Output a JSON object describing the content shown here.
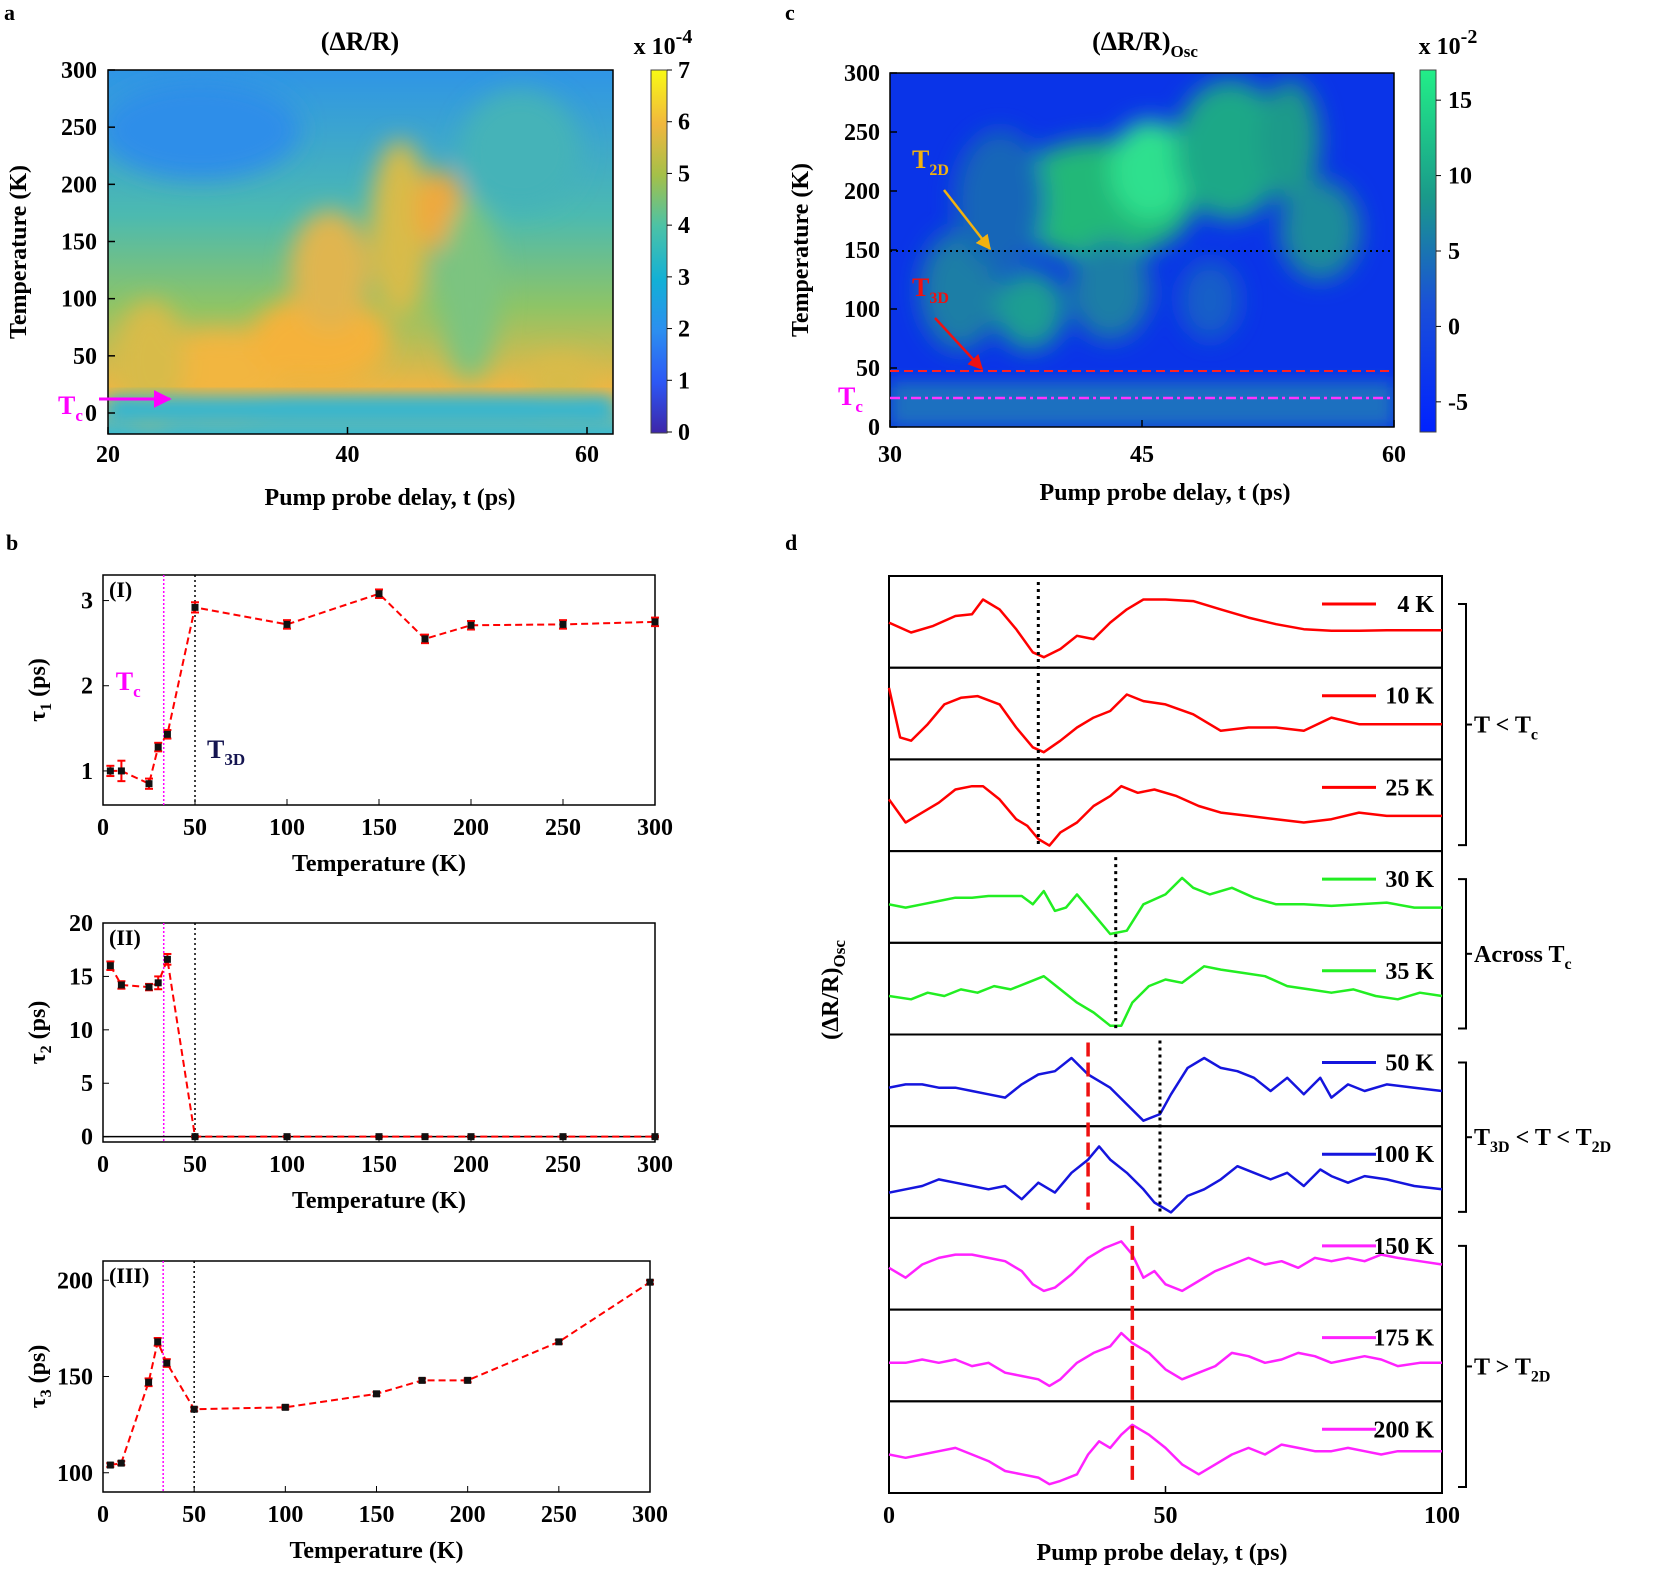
{
  "panels": {
    "a": {
      "letter": "a",
      "title": "(ΔR/R)",
      "xlabel": "Pump probe delay, t (ps)",
      "ylabel": "Temperature (K)",
      "xticks": [
        "20",
        "40",
        "60"
      ],
      "yticks": [
        "0",
        "50",
        "100",
        "150",
        "200",
        "250",
        "300"
      ],
      "colorbar": {
        "multiplier": "x 10",
        "exponent": "-4",
        "ticks": [
          "0",
          "1",
          "2",
          "3",
          "4",
          "5",
          "6",
          "7"
        ]
      },
      "annotation": {
        "main": "T",
        "sub": "c"
      }
    },
    "b": {
      "letter": "b"
    },
    "c": {
      "letter": "c",
      "title_main": "(ΔR/R)",
      "title_sub": "Osc",
      "xlabel": "Pump probe delay, t (ps)",
      "ylabel": "Temperature (K)",
      "xticks": [
        "30",
        "45",
        "60"
      ],
      "yticks": [
        "0",
        "50",
        "100",
        "150",
        "200",
        "250",
        "300"
      ],
      "colorbar": {
        "multiplier": "x 10",
        "exponent": "-2",
        "ticks": [
          "15",
          "10",
          "5",
          "0",
          "-5"
        ]
      },
      "annotations": {
        "t2d": {
          "main": "T",
          "sub": "2D"
        },
        "t3d": {
          "main": "T",
          "sub": "3D"
        },
        "tc": {
          "main": "T",
          "sub": "c"
        }
      }
    },
    "d": {
      "letter": "d",
      "ylabel_main": "(ΔR/R)",
      "ylabel_sub": "Osc",
      "xlabel": "Pump probe delay, t (ps)",
      "xticks": [
        "0",
        "50",
        "100"
      ],
      "groups": [
        {
          "text": "T < T",
          "sub": "c",
          "tail": ""
        },
        {
          "text": "Across T",
          "sub": "c",
          "tail": ""
        },
        {
          "text": "T",
          "sub": "3D",
          "tail": " < T < T",
          "sub2": "2D"
        },
        {
          "text": "T > T",
          "sub": "2D",
          "tail": ""
        }
      ]
    }
  },
  "chart_data": [
    {
      "id": "b-I",
      "type": "line",
      "panel_label": "(I)",
      "ylabel_main": "τ",
      "ylabel_sub": "1",
      "ylabel_tail": " (ps)",
      "xlabel": "Temperature (K)",
      "xlim": [
        0,
        300
      ],
      "ylim": [
        0.6,
        3.3
      ],
      "xticks": [
        0,
        50,
        100,
        150,
        200,
        250,
        300
      ],
      "yticks": [
        1,
        2,
        3
      ],
      "x": [
        4,
        10,
        25,
        30,
        35,
        50,
        100,
        150,
        175,
        200,
        250,
        300
      ],
      "y": [
        1.0,
        1.0,
        0.85,
        1.28,
        1.43,
        2.92,
        2.72,
        3.08,
        2.55,
        2.71,
        2.72,
        2.75
      ],
      "err": [
        0.06,
        0.12,
        0.06,
        0.05,
        0.05,
        0.06,
        0.05,
        0.05,
        0.05,
        0.05,
        0.05,
        0.05
      ],
      "color": "#ff0000",
      "tc_line": 33,
      "t3d_line": 50,
      "tc_label": {
        "main": "T",
        "sub": "c"
      },
      "t3d_label": {
        "main": "T",
        "sub": "3D"
      }
    },
    {
      "id": "b-II",
      "type": "line",
      "panel_label": "(II)",
      "ylabel_main": "τ",
      "ylabel_sub": "2",
      "ylabel_tail": " (ps)",
      "xlabel": "Temperature (K)",
      "xlim": [
        0,
        300
      ],
      "ylim": [
        -0.5,
        20
      ],
      "xticks": [
        0,
        50,
        100,
        150,
        200,
        250,
        300
      ],
      "yticks": [
        0,
        5,
        10,
        15,
        20
      ],
      "x": [
        4,
        10,
        25,
        30,
        35,
        50,
        100,
        150,
        175,
        200,
        250,
        300
      ],
      "y": [
        16.0,
        14.2,
        14.0,
        14.4,
        16.6,
        0,
        0,
        0,
        0,
        0,
        0,
        0
      ],
      "err": [
        0.4,
        0.35,
        0.3,
        0.6,
        0.5,
        0.05,
        0.05,
        0.05,
        0.05,
        0.05,
        0.05,
        0.05
      ],
      "color": "#ff0000",
      "tc_line": 33,
      "t3d_line": 50
    },
    {
      "id": "b-III",
      "type": "line",
      "panel_label": "(III)",
      "ylabel_main": "τ",
      "ylabel_sub": "3",
      "ylabel_tail": " (ps)",
      "xlabel": "Temperature (K)",
      "xlim": [
        0,
        300
      ],
      "ylim": [
        90,
        210
      ],
      "xticks": [
        0,
        50,
        100,
        150,
        200,
        250,
        300
      ],
      "yticks": [
        100,
        150,
        200
      ],
      "x": [
        4,
        10,
        25,
        30,
        35,
        50,
        100,
        150,
        175,
        200,
        250,
        300
      ],
      "y": [
        104,
        105,
        147,
        168,
        157,
        133,
        134,
        141,
        148,
        148,
        168,
        199
      ],
      "err": [
        1,
        1,
        2,
        2,
        2,
        1,
        1,
        1,
        1,
        1,
        1,
        1
      ],
      "color": "#ff0000",
      "tc_line": 33,
      "t3d_line": 50
    },
    {
      "id": "d",
      "type": "line",
      "xlim": [
        0,
        100
      ],
      "series": [
        {
          "name": "4 K",
          "color": "#ff0000",
          "x": [
            0,
            4,
            8,
            12,
            15,
            17,
            20,
            23,
            26,
            28,
            31,
            34,
            37,
            40,
            43,
            46,
            50,
            55,
            60,
            65,
            70,
            75,
            80,
            85,
            90,
            95,
            100
          ],
          "y": [
            0.2,
            -0.1,
            0.1,
            0.4,
            0.45,
            0.9,
            0.6,
            0.0,
            -0.7,
            -0.85,
            -0.6,
            -0.2,
            -0.3,
            0.2,
            0.6,
            0.9,
            0.9,
            0.85,
            0.6,
            0.35,
            0.15,
            0.0,
            -0.05,
            -0.05,
            -0.03,
            -0.03,
            -0.03
          ]
        },
        {
          "name": "10 K",
          "color": "#ff0000",
          "x": [
            0,
            2,
            4,
            7,
            10,
            13,
            16,
            20,
            23,
            26,
            28,
            31,
            34,
            37,
            40,
            43,
            46,
            50,
            55,
            60,
            65,
            70,
            75,
            80,
            85,
            90,
            95,
            100
          ],
          "y": [
            1.0,
            -0.5,
            -0.6,
            -0.1,
            0.5,
            0.7,
            0.75,
            0.5,
            -0.2,
            -0.8,
            -0.95,
            -0.6,
            -0.2,
            0.1,
            0.3,
            0.8,
            0.6,
            0.5,
            0.2,
            -0.3,
            -0.2,
            -0.2,
            -0.3,
            0.1,
            -0.1,
            -0.1,
            -0.1,
            -0.1
          ]
        },
        {
          "name": "25 K",
          "color": "#ff0000",
          "x": [
            0,
            3,
            6,
            9,
            12,
            15,
            17,
            20,
            23,
            25,
            27,
            29,
            31,
            34,
            37,
            40,
            42,
            45,
            48,
            52,
            56,
            60,
            65,
            70,
            75,
            80,
            85,
            90,
            95,
            100
          ],
          "y": [
            0.4,
            -0.3,
            0.0,
            0.3,
            0.7,
            0.8,
            0.8,
            0.4,
            -0.2,
            -0.4,
            -0.8,
            -1.0,
            -0.6,
            -0.3,
            0.2,
            0.5,
            0.8,
            0.6,
            0.7,
            0.5,
            0.2,
            0.0,
            -0.1,
            -0.2,
            -0.3,
            -0.2,
            0.0,
            -0.1,
            -0.1,
            -0.1
          ]
        },
        {
          "name": "30 K",
          "color": "#22ee22",
          "x": [
            0,
            3,
            6,
            9,
            12,
            15,
            18,
            21,
            24,
            26,
            28,
            30,
            32,
            34,
            37,
            40,
            43,
            46,
            50,
            53,
            55,
            58,
            62,
            66,
            70,
            75,
            80,
            85,
            90,
            95,
            100
          ],
          "y": [
            0.0,
            -0.1,
            0.0,
            0.1,
            0.2,
            0.2,
            0.25,
            0.25,
            0.25,
            0.0,
            0.4,
            -0.2,
            -0.1,
            0.3,
            -0.3,
            -0.9,
            -0.8,
            0.0,
            0.3,
            0.8,
            0.5,
            0.3,
            0.5,
            0.2,
            0.0,
            0.0,
            -0.05,
            0.0,
            0.05,
            -0.1,
            -0.1
          ]
        },
        {
          "name": "35 K",
          "color": "#22ee22",
          "x": [
            0,
            4,
            7,
            10,
            13,
            16,
            19,
            22,
            25,
            28,
            31,
            34,
            37,
            40,
            42,
            44,
            47,
            50,
            53,
            57,
            60,
            64,
            68,
            72,
            76,
            80,
            84,
            88,
            92,
            96,
            100
          ],
          "y": [
            0.0,
            -0.1,
            0.1,
            0.0,
            0.2,
            0.1,
            0.3,
            0.2,
            0.4,
            0.6,
            0.2,
            -0.2,
            -0.5,
            -0.9,
            -0.9,
            -0.2,
            0.3,
            0.5,
            0.4,
            0.9,
            0.8,
            0.7,
            0.6,
            0.3,
            0.2,
            0.1,
            0.2,
            0.0,
            -0.1,
            0.1,
            0.0
          ]
        },
        {
          "name": "50 K",
          "color": "#1515dd",
          "x": [
            0,
            3,
            6,
            9,
            12,
            15,
            18,
            21,
            24,
            27,
            30,
            33,
            36,
            38,
            40,
            43,
            46,
            49,
            51,
            54,
            57,
            60,
            63,
            66,
            69,
            72,
            75,
            78,
            80,
            83,
            86,
            90,
            95,
            100
          ],
          "y": [
            0.0,
            0.1,
            0.1,
            0.0,
            0.0,
            -0.1,
            -0.2,
            -0.3,
            0.1,
            0.4,
            0.5,
            0.9,
            0.4,
            0.2,
            0.0,
            -0.5,
            -1.0,
            -0.8,
            -0.2,
            0.6,
            0.9,
            0.6,
            0.5,
            0.3,
            -0.1,
            0.3,
            -0.2,
            0.3,
            -0.3,
            0.1,
            -0.1,
            0.1,
            0.0,
            -0.1
          ]
        },
        {
          "name": "100 K",
          "color": "#1515dd",
          "x": [
            0,
            3,
            6,
            9,
            12,
            15,
            18,
            21,
            24,
            27,
            30,
            33,
            36,
            38,
            40,
            43,
            46,
            48,
            51,
            54,
            57,
            60,
            63,
            66,
            69,
            72,
            75,
            78,
            80,
            83,
            86,
            90,
            95,
            100
          ],
          "y": [
            -0.4,
            -0.3,
            -0.2,
            0.0,
            -0.1,
            -0.2,
            -0.3,
            -0.2,
            -0.6,
            -0.1,
            -0.4,
            0.2,
            0.6,
            1.0,
            0.6,
            0.2,
            -0.3,
            -0.7,
            -1.0,
            -0.5,
            -0.3,
            0.0,
            0.4,
            0.2,
            0.0,
            0.2,
            -0.2,
            0.3,
            0.1,
            -0.1,
            0.1,
            0.0,
            -0.2,
            -0.3
          ]
        },
        {
          "name": "150 K",
          "color": "#ff22ff",
          "x": [
            0,
            3,
            6,
            9,
            12,
            15,
            18,
            21,
            24,
            26,
            28,
            30,
            33,
            36,
            39,
            42,
            44,
            46,
            48,
            50,
            53,
            56,
            59,
            62,
            65,
            68,
            71,
            74,
            77,
            80,
            83,
            86,
            89,
            92,
            96,
            100
          ],
          "y": [
            0.1,
            -0.2,
            0.2,
            0.4,
            0.5,
            0.5,
            0.4,
            0.3,
            0.0,
            -0.4,
            -0.6,
            -0.5,
            -0.1,
            0.4,
            0.7,
            0.9,
            0.5,
            -0.2,
            0.0,
            -0.4,
            -0.6,
            -0.3,
            0.0,
            0.2,
            0.4,
            0.2,
            0.3,
            0.1,
            0.4,
            0.3,
            0.4,
            0.3,
            0.5,
            0.4,
            0.3,
            0.2
          ]
        },
        {
          "name": "175 K",
          "color": "#ff22ff",
          "x": [
            0,
            3,
            6,
            9,
            12,
            15,
            18,
            21,
            24,
            27,
            29,
            31,
            34,
            37,
            40,
            42,
            44,
            47,
            50,
            53,
            56,
            59,
            62,
            65,
            68,
            71,
            74,
            77,
            80,
            83,
            86,
            89,
            92,
            96,
            100
          ],
          "y": [
            0.0,
            0.0,
            0.1,
            0.0,
            0.1,
            -0.1,
            0.0,
            -0.3,
            -0.4,
            -0.5,
            -0.7,
            -0.5,
            0.0,
            0.3,
            0.5,
            0.9,
            0.6,
            0.3,
            -0.2,
            -0.5,
            -0.3,
            -0.1,
            0.3,
            0.2,
            0.0,
            0.1,
            0.3,
            0.2,
            0.0,
            0.1,
            0.2,
            0.1,
            -0.1,
            0.0,
            0.0
          ]
        },
        {
          "name": "200 K",
          "color": "#ff22ff",
          "x": [
            0,
            3,
            6,
            9,
            12,
            15,
            18,
            21,
            24,
            27,
            29,
            31,
            34,
            36,
            38,
            40,
            42,
            44,
            47,
            50,
            53,
            56,
            59,
            62,
            65,
            68,
            71,
            74,
            77,
            80,
            83,
            86,
            89,
            92,
            96,
            100
          ],
          "y": [
            0.0,
            -0.1,
            0.0,
            0.1,
            0.2,
            0.0,
            -0.2,
            -0.5,
            -0.6,
            -0.7,
            -0.9,
            -0.8,
            -0.6,
            0.0,
            0.4,
            0.2,
            0.6,
            0.9,
            0.6,
            0.2,
            -0.3,
            -0.6,
            -0.3,
            0.0,
            0.2,
            0.0,
            0.3,
            0.2,
            0.1,
            0.1,
            0.2,
            0.1,
            0.0,
            0.1,
            0.1,
            0.1
          ]
        }
      ],
      "black_dotted_markers": [
        {
          "x": 27,
          "from": 0,
          "to": 3
        },
        {
          "x": 41,
          "from": 3,
          "to": 5
        },
        {
          "x": 49,
          "from": 5,
          "to": 7
        }
      ],
      "red_dashed_markers": [
        {
          "x": 36,
          "from": 5,
          "to": 7
        },
        {
          "x": 44,
          "from": 7,
          "to": 10
        }
      ]
    }
  ]
}
